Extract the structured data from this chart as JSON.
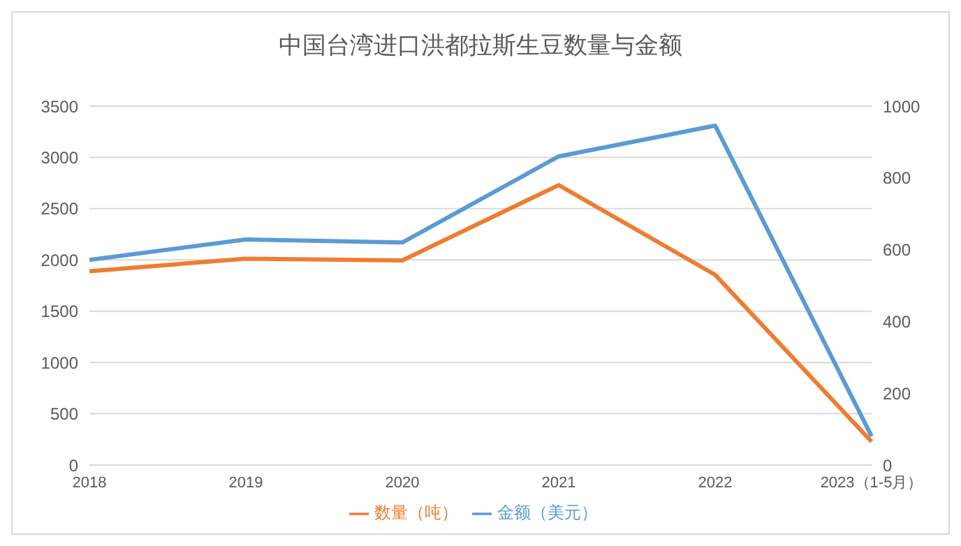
{
  "chart_data": {
    "type": "line",
    "title": "中国台湾进口洪都拉斯生豆数量与金额",
    "categories": [
      "2018",
      "2019",
      "2020",
      "2021",
      "2022",
      "2023（1-5月）"
    ],
    "series": [
      {
        "name": "金额（美元）",
        "color": "#5b9bd5",
        "values": [
          2000,
          2200,
          2170,
          3010,
          3310,
          280
        ]
      },
      {
        "name": "数量（吨）",
        "color": "#ed7d31",
        "values": [
          540,
          575,
          570,
          780,
          530,
          65
        ],
        "axis": "y2"
      }
    ],
    "ylim": [
      0,
      3500
    ],
    "yticks": [
      0,
      500,
      1000,
      1500,
      2000,
      2500,
      3000,
      3500
    ],
    "y2lim": [
      0,
      1000
    ],
    "y2ticks": [
      0,
      200,
      400,
      600,
      800,
      1000
    ],
    "grid": "y",
    "legend": "bottom",
    "marker": "none",
    "line_style": "solid"
  }
}
